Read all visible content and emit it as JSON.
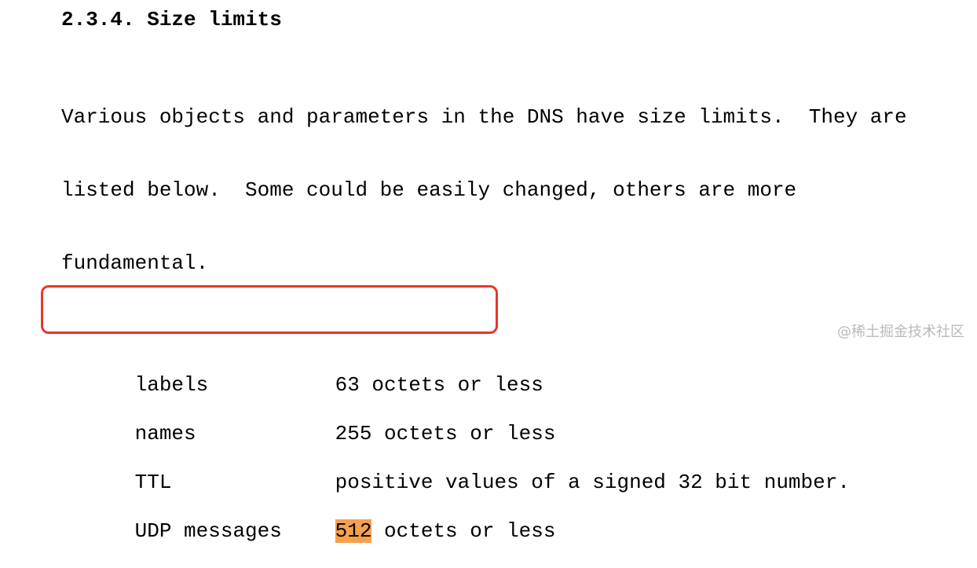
{
  "section": {
    "heading": "2.3.4. Size limits"
  },
  "intro": {
    "lines": [
      "Various objects and parameters in the DNS have size limits.  They are",
      "listed below.  Some could be easily changed, others are more",
      "fundamental."
    ]
  },
  "limits": [
    {
      "name": "labels",
      "value": "63 octets or less"
    },
    {
      "name": "names",
      "value": "255 octets or less"
    },
    {
      "name": "TTL",
      "value": "positive values of a signed 32 bit number."
    },
    {
      "name": "UDP messages",
      "value_highlight": "512",
      "value_rest": " octets or less"
    }
  ],
  "watermark": "@稀土掘金技术社区",
  "colors": {
    "highlight": "#f6a04d",
    "box_border": "#e8362b",
    "watermark": "#b9b9b9"
  }
}
